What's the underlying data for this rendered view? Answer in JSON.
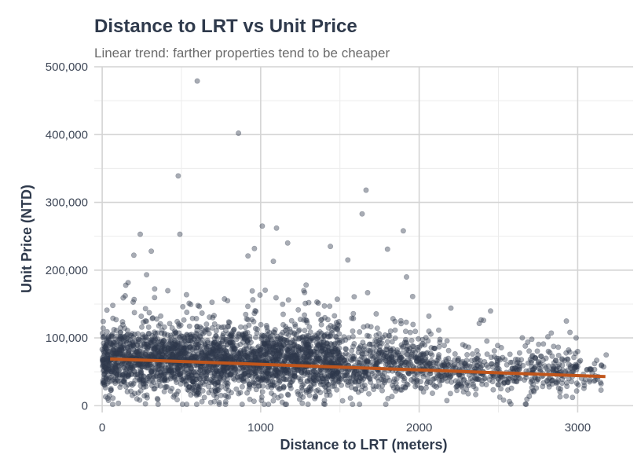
{
  "chart_data": {
    "type": "scatter",
    "title": "Distance to LRT vs Unit Price",
    "subtitle": "Linear trend: farther properties tend to be cheaper",
    "xlabel": "Distance to LRT (meters)",
    "ylabel": "Unit Price (NTD)",
    "xlim": [
      -50,
      3350
    ],
    "ylim": [
      -10000,
      500000
    ],
    "x_ticks": [
      0,
      1000,
      2000,
      3000
    ],
    "x_tick_labels": [
      "0",
      "1000",
      "2000",
      "3000"
    ],
    "y_ticks": [
      0,
      100000,
      200000,
      300000,
      400000,
      500000
    ],
    "y_tick_labels": [
      "0",
      "100,000",
      "200,000",
      "300,000",
      "400,000",
      "500,000"
    ],
    "grid": true,
    "legend": "none",
    "point_color": "#2f3a4c",
    "trend_color": "#c0551b",
    "trend_line": {
      "x": [
        50,
        3175
      ],
      "y": [
        69000,
        43000
      ]
    },
    "notable_points": [
      {
        "x": 600,
        "y": 479000
      },
      {
        "x": 860,
        "y": 402000
      },
      {
        "x": 480,
        "y": 339000
      },
      {
        "x": 1665,
        "y": 318000
      },
      {
        "x": 1640,
        "y": 283000
      },
      {
        "x": 1010,
        "y": 265000
      },
      {
        "x": 1100,
        "y": 262000
      },
      {
        "x": 1900,
        "y": 258000
      },
      {
        "x": 490,
        "y": 253000
      },
      {
        "x": 240,
        "y": 253000
      },
      {
        "x": 1170,
        "y": 240000
      },
      {
        "x": 1440,
        "y": 235000
      },
      {
        "x": 1800,
        "y": 231000
      },
      {
        "x": 310,
        "y": 228000
      },
      {
        "x": 200,
        "y": 222000
      },
      {
        "x": 920,
        "y": 221000
      },
      {
        "x": 1550,
        "y": 215000
      },
      {
        "x": 1080,
        "y": 213000
      },
      {
        "x": 1920,
        "y": 190000
      },
      {
        "x": 2200,
        "y": 144000
      },
      {
        "x": 2990,
        "y": 100000
      },
      {
        "x": 3000,
        "y": 80000
      },
      {
        "x": 3180,
        "y": 75000
      },
      {
        "x": 3120,
        "y": 67000
      },
      {
        "x": 3150,
        "y": 60000
      }
    ],
    "dense_regions": [
      {
        "x_range": [
          0,
          1500
        ],
        "y_center": 65000,
        "y_spread": 45000,
        "count": 2600
      },
      {
        "x_range": [
          1500,
          2100
        ],
        "y_center": 58000,
        "y_spread": 40000,
        "count": 500
      },
      {
        "x_range": [
          2100,
          3000
        ],
        "y_center": 48000,
        "y_spread": 30000,
        "count": 450
      },
      {
        "x_range": [
          3000,
          3175
        ],
        "y_center": 45000,
        "y_spread": 20000,
        "count": 30
      }
    ]
  }
}
